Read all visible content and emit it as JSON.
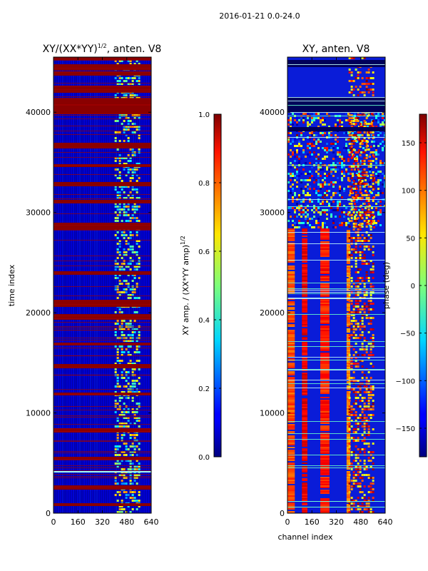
{
  "suptitle": "2016-01-21 0.0-24.0",
  "chart_data": [
    {
      "type": "heatmap",
      "title_main": "XY/(XX*YY)",
      "title_exp": "1/2",
      "title_tail": ", anten. V8",
      "xlabel": "",
      "ylabel": "time index",
      "xlim": [
        0,
        640
      ],
      "ylim": [
        0,
        45500
      ],
      "xticks": [
        0,
        160,
        320,
        480,
        640
      ],
      "yticks": [
        0,
        10000,
        20000,
        30000,
        40000
      ],
      "colorbar": {
        "label_main": "XY amp. / (XX*YY amp)",
        "label_exp": "1/2",
        "range": [
          0.0,
          1.0
        ],
        "ticks": [
          "0.0",
          "0.2",
          "0.4",
          "0.6",
          "0.8",
          "1.0"
        ],
        "tick_values": [
          0.0,
          0.2,
          0.4,
          0.6,
          0.8,
          1.0
        ]
      }
    },
    {
      "type": "heatmap",
      "title_main": "XY, anten. V8",
      "xlabel": "channel index",
      "ylabel": "",
      "xlim": [
        0,
        640
      ],
      "ylim": [
        0,
        45500
      ],
      "xticks": [
        0,
        160,
        320,
        480,
        640
      ],
      "yticks": [
        0,
        10000,
        20000,
        30000,
        40000
      ],
      "colorbar": {
        "label_main": "phase (deg)",
        "range": [
          -180,
          180
        ],
        "ticks": [
          "−150",
          "−100",
          "−50",
          "0",
          "50",
          "100",
          "150"
        ],
        "tick_values": [
          -150,
          -100,
          -50,
          0,
          50,
          100,
          150
        ]
      }
    }
  ]
}
